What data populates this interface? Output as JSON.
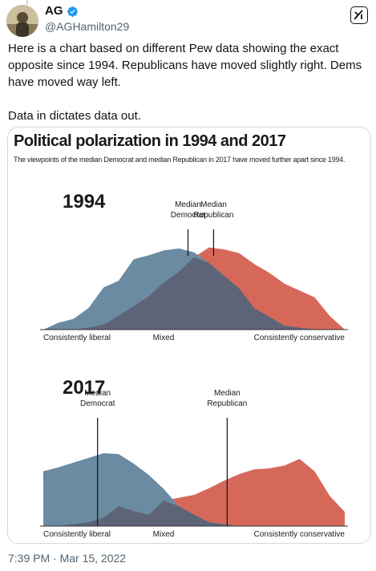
{
  "tweet": {
    "display_name": "AG",
    "handle": "@AGHamilton29",
    "verified_icon": "verified-badge-icon",
    "grok_icon": "grok-icon",
    "text": "Here is a chart based on different Pew data showing the exact opposite since 1994. Republicans have moved slightly right. Dems have moved way left.\n\nData in dictates data out.",
    "timestamp": "7:39 PM · Mar 15, 2022"
  },
  "colors": {
    "democrat": "#6a8ba1",
    "republican": "#d6685a",
    "overlap": "#5e6478",
    "verified": "#1d9bf0"
  },
  "chart": {
    "title": "Political polarization in 1994 and 2017",
    "subtitle": "The viewpoints of the median Democrat and median Republican in 2017 have moved further apart since 1994.",
    "x_labels": {
      "left": "Consistently liberal",
      "middle": "Mixed",
      "right": "Consistently conservative"
    }
  },
  "chart_data": [
    {
      "type": "area",
      "title": "1994",
      "x": [
        0,
        1,
        2,
        3,
        4,
        5,
        6,
        7,
        8,
        9,
        10,
        11,
        12,
        13,
        14,
        15,
        16,
        17,
        18,
        19,
        20
      ],
      "series": [
        {
          "values": [
            0,
            7,
            11,
            22,
            43,
            50,
            72,
            76,
            81,
            83,
            79,
            68,
            55,
            42,
            22,
            13,
            4,
            2,
            0,
            0,
            0
          ]
        },
        {
          "values": [
            0,
            0,
            0,
            2,
            5,
            14,
            24,
            34,
            48,
            59,
            74,
            84,
            82,
            78,
            67,
            58,
            47,
            40,
            33,
            14,
            0
          ]
        }
      ],
      "annotations": [
        {
          "label": "Median Democrat",
          "x": 9.6
        },
        {
          "label": "Median Republican",
          "x": 11.3
        }
      ]
    },
    {
      "type": "area",
      "title": "2017",
      "x": [
        0,
        1,
        2,
        3,
        4,
        5,
        6,
        7,
        8,
        9,
        10,
        11,
        12,
        13,
        14,
        15,
        16,
        17,
        18,
        19,
        20
      ],
      "series": [
        {
          "values": [
            58,
            62,
            67,
            72,
            77,
            76,
            66,
            54,
            39,
            21,
            12,
            4,
            2,
            0,
            0,
            0,
            0,
            0,
            0,
            0,
            0
          ]
        },
        {
          "values": [
            0,
            0,
            2,
            4,
            9,
            21,
            16,
            12,
            27,
            30,
            33,
            40,
            48,
            55,
            60,
            61,
            64,
            71,
            58,
            32,
            15
          ]
        }
      ],
      "annotations": [
        {
          "label": "Median Democrat",
          "x": 3.6
        },
        {
          "label": "Median Republican",
          "x": 12.2
        }
      ]
    }
  ]
}
